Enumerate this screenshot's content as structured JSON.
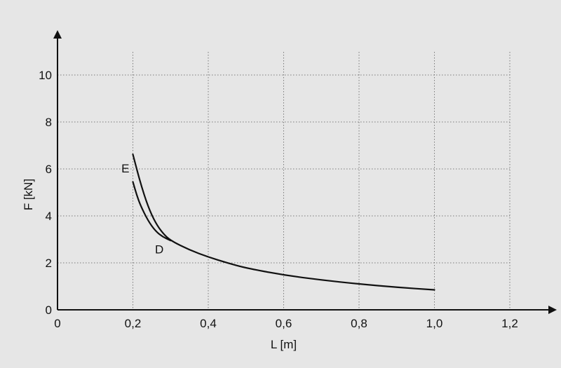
{
  "chart_data": {
    "type": "line",
    "xlabel": "L [m]",
    "ylabel": "F [kN]",
    "xlim": [
      0,
      1.2
    ],
    "ylim": [
      0,
      10
    ],
    "x_ticks": [
      0,
      0.2,
      0.4,
      0.6,
      0.8,
      1.0,
      1.2
    ],
    "x_tick_labels": [
      "0",
      "0,2",
      "0,4",
      "0,6",
      "0,8",
      "1,0",
      "1,2"
    ],
    "y_ticks": [
      0,
      2,
      4,
      6,
      8,
      10
    ],
    "y_tick_labels": [
      "0",
      "2",
      "4",
      "6",
      "8",
      "10"
    ],
    "grid": true,
    "annotations": [
      {
        "text": "E",
        "x": 0.18,
        "y": 5.85
      },
      {
        "text": "D",
        "x": 0.27,
        "y": 2.4
      }
    ],
    "series": [
      {
        "points": [
          [
            0.2,
            6.62
          ],
          [
            0.22,
            5.4
          ],
          [
            0.24,
            4.4
          ],
          [
            0.26,
            3.7
          ],
          [
            0.28,
            3.25
          ],
          [
            0.3,
            2.95
          ],
          [
            0.35,
            2.55
          ],
          [
            0.4,
            2.25
          ],
          [
            0.45,
            2.0
          ],
          [
            0.5,
            1.78
          ],
          [
            0.6,
            1.48
          ],
          [
            0.7,
            1.27
          ],
          [
            0.8,
            1.1
          ],
          [
            0.9,
            0.96
          ],
          [
            1.0,
            0.85
          ]
        ]
      },
      {
        "points": [
          [
            0.2,
            5.45
          ],
          [
            0.21,
            4.9
          ],
          [
            0.22,
            4.45
          ],
          [
            0.24,
            3.8
          ],
          [
            0.26,
            3.35
          ],
          [
            0.28,
            3.1
          ],
          [
            0.3,
            2.95
          ]
        ]
      }
    ]
  }
}
